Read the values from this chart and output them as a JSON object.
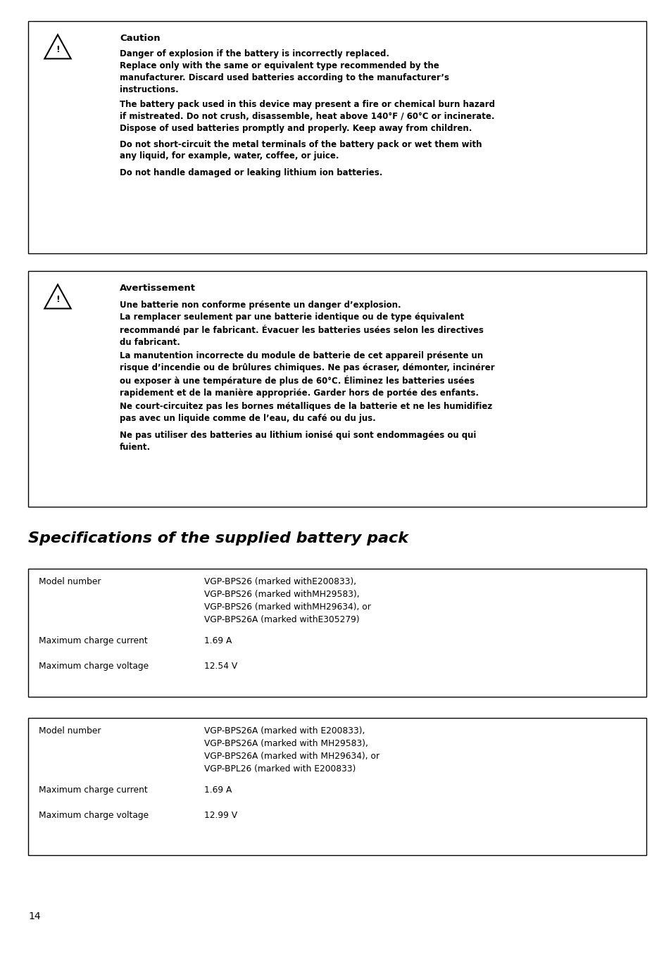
{
  "bg_color": "#ffffff",
  "caution_box": {
    "title": "Caution",
    "paragraphs": [
      "Danger of explosion if the battery is incorrectly replaced.\nReplace only with the same or equivalent type recommended by the\nmanufacturer. Discard used batteries according to the manufacturer’s\ninstructions.",
      "The battery pack used in this device may present a fire or chemical burn hazard\nif mistreated. Do not crush, disassemble, heat above 140°F / 60°C or incinerate.\nDispose of used batteries promptly and properly. Keep away from children.",
      "Do not short-circuit the metal terminals of the battery pack or wet them with\nany liquid, for example, water, coffee, or juice.",
      "Do not handle damaged or leaking lithium ion batteries."
    ]
  },
  "avertissement_box": {
    "title": "Avertissement",
    "paragraphs": [
      "Une batterie non conforme présente un danger d’explosion.\nLa remplacer seulement par une batterie identique ou de type équivalent\nrecommandé par le fabricant. Évacuer les batteries usées selon les directives\ndu fabricant.",
      "La manutention incorrecte du module de batterie de cet appareil présente un\nrisque d’incendie ou de brûlures chimiques. Ne pas écraser, démonter, incinérer\nou exposer à une température de plus de 60°C. Éliminez les batteries usées\nrapidement et de la manière appropriée. Garder hors de portée des enfants.",
      "Ne court-circuitez pas les bornes métalliques de la batterie et ne les humidifiez\npas avec un liquide comme de l’eau, du café ou du jus.",
      "Ne pas utiliser des batteries au lithium ionisé qui sont endommagées ou qui\nfuient."
    ]
  },
  "section_title": "Specifications of the supplied battery pack",
  "table1": {
    "rows": [
      {
        "label": "Model number",
        "value": "VGP-BPS26 (marked withE200833),\nVGP-BPS26 (marked withMH29583),\nVGP-BPS26 (marked withMH29634), or\nVGP-BPS26A (marked withE305279)"
      },
      {
        "label": "Maximum charge current",
        "value": "1.69 A"
      },
      {
        "label": "Maximum charge voltage",
        "value": "12.54 V"
      }
    ]
  },
  "table2": {
    "rows": [
      {
        "label": "Model number",
        "value": "VGP-BPS26A (marked with E200833),\nVGP-BPS26A (marked with MH29583),\nVGP-BPS26A (marked with MH29634), or\nVGP-BPL26 (marked with E200833)"
      },
      {
        "label": "Maximum charge current",
        "value": "1.69 A"
      },
      {
        "label": "Maximum charge voltage",
        "value": "12.99 V"
      }
    ]
  },
  "page_number": "14"
}
